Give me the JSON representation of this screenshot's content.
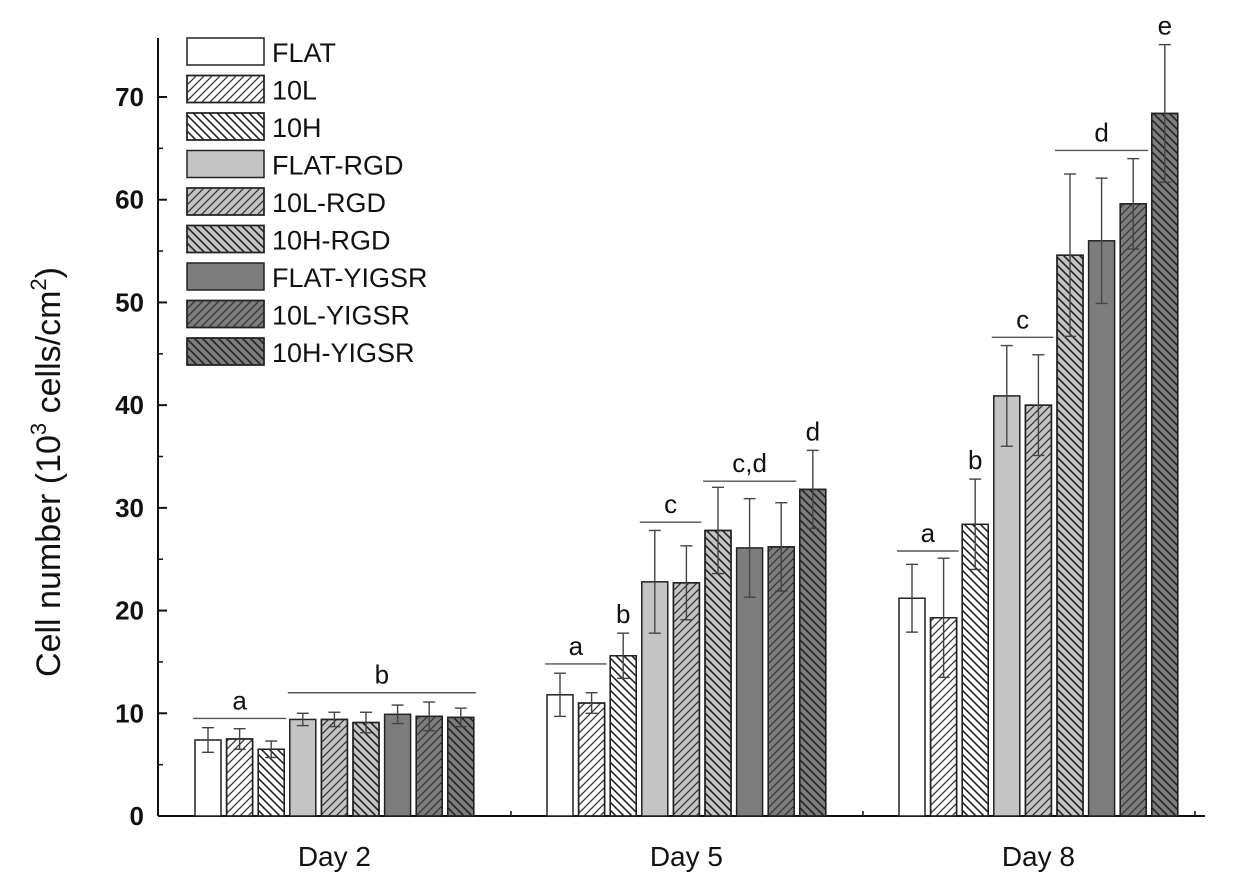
{
  "chart_data": {
    "type": "bar",
    "ylabel_main": "Cell number (10",
    "ylabel_sup1": "3",
    "ylabel_mid": " cells/cm",
    "ylabel_sup2": "2",
    "ylabel_end": ")",
    "xlabel": "",
    "ylim": [
      0,
      75
    ],
    "yticks": [
      "0",
      "10",
      "20",
      "30",
      "40",
      "50",
      "60",
      "70"
    ],
    "categories": [
      "Day 2",
      "Day 5",
      "Day 8"
    ],
    "series": [
      {
        "name": "FLAT",
        "fill": "#ffffff",
        "pattern": "none",
        "values": [
          7.4,
          11.8,
          21.2
        ],
        "errors": [
          1.2,
          2.1,
          3.3
        ]
      },
      {
        "name": "10L",
        "fill": "#ffffff",
        "pattern": "fwd",
        "values": [
          7.5,
          11.0,
          19.3
        ],
        "errors": [
          1.0,
          1.0,
          5.8
        ]
      },
      {
        "name": "10H",
        "fill": "#ffffff",
        "pattern": "back",
        "values": [
          6.5,
          15.6,
          28.4
        ],
        "errors": [
          0.8,
          2.2,
          4.4
        ]
      },
      {
        "name": "FLAT-RGD",
        "fill": "#c4c4c4",
        "pattern": "none",
        "values": [
          9.4,
          22.8,
          40.9
        ],
        "errors": [
          0.6,
          5.0,
          4.9
        ]
      },
      {
        "name": "10L-RGD",
        "fill": "#c4c4c4",
        "pattern": "fwd",
        "values": [
          9.4,
          22.7,
          40.0
        ],
        "errors": [
          0.7,
          3.6,
          4.9
        ]
      },
      {
        "name": "10H-RGD",
        "fill": "#c4c4c4",
        "pattern": "back",
        "values": [
          9.1,
          27.8,
          54.6
        ],
        "errors": [
          1.0,
          4.2,
          7.9
        ]
      },
      {
        "name": "FLAT-YIGSR",
        "fill": "#7d7d7d",
        "pattern": "none",
        "values": [
          9.9,
          26.1,
          56.0
        ],
        "errors": [
          0.9,
          4.8,
          6.1
        ]
      },
      {
        "name": "10L-YIGSR",
        "fill": "#7d7d7d",
        "pattern": "fwd",
        "values": [
          9.7,
          26.2,
          59.6
        ],
        "errors": [
          1.4,
          4.3,
          4.4
        ]
      },
      {
        "name": "10H-YIGSR",
        "fill": "#7d7d7d",
        "pattern": "back",
        "values": [
          9.6,
          31.8,
          68.4
        ],
        "errors": [
          0.9,
          3.8,
          6.7
        ]
      }
    ],
    "significance": [
      {
        "label": "a",
        "group": 0,
        "from": 0,
        "to": 2,
        "y": 9.5
      },
      {
        "label": "b",
        "group": 0,
        "from": 3,
        "to": 8,
        "y": 12.0
      },
      {
        "label": "a",
        "group": 1,
        "from": 0,
        "to": 1,
        "y": 14.8
      },
      {
        "label": "b",
        "group": 1,
        "from": 2,
        "to": 2,
        "y": null,
        "above_bar": true
      },
      {
        "label": "c",
        "group": 1,
        "from": 3,
        "to": 4,
        "y": 28.6
      },
      {
        "label": "c,d",
        "group": 1,
        "from": 5,
        "to": 7,
        "y": 32.6
      },
      {
        "label": "d",
        "group": 1,
        "from": 8,
        "to": 8,
        "y": null,
        "above_bar": true
      },
      {
        "label": "a",
        "group": 2,
        "from": 0,
        "to": 1,
        "y": 25.8
      },
      {
        "label": "b",
        "group": 2,
        "from": 2,
        "to": 2,
        "y": null,
        "above_bar": true
      },
      {
        "label": "c",
        "group": 2,
        "from": 3,
        "to": 4,
        "y": 46.6
      },
      {
        "label": "d",
        "group": 2,
        "from": 5,
        "to": 7,
        "y": 64.8
      },
      {
        "label": "e",
        "group": 2,
        "from": 8,
        "to": 8,
        "y": null,
        "above_bar": true
      }
    ],
    "legend_position": "top-left",
    "grid": false
  }
}
